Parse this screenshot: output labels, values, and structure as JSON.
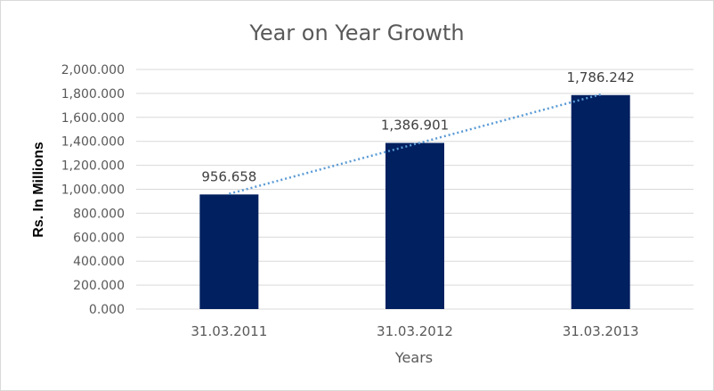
{
  "chart_data": {
    "type": "bar",
    "title": "Year on Year Growth",
    "xlabel": "Years",
    "ylabel": "Rs. In Millions",
    "categories": [
      "31.03.2011",
      "31.03.2012",
      "31.03.2013"
    ],
    "values": [
      956.658,
      1386.901,
      1786.242
    ],
    "data_labels": [
      "956.658",
      "1,386.901",
      "1,786.242"
    ],
    "ylim": [
      0,
      2000
    ],
    "yticks": [
      0,
      200,
      400,
      600,
      800,
      1000,
      1200,
      1400,
      1600,
      1800,
      2000
    ],
    "ytick_labels": [
      "0.000",
      "200.000",
      "400.000",
      "600.000",
      "800.000",
      "1,000.000",
      "1,200.000",
      "1,400.000",
      "1,600.000",
      "1,800.000",
      "2,000.000"
    ],
    "grid": true,
    "legend": "none",
    "trendline": "linear",
    "colors": {
      "bar": "#002060",
      "trendline": "#5b9bd5",
      "grid": "#d9d9d9"
    }
  }
}
